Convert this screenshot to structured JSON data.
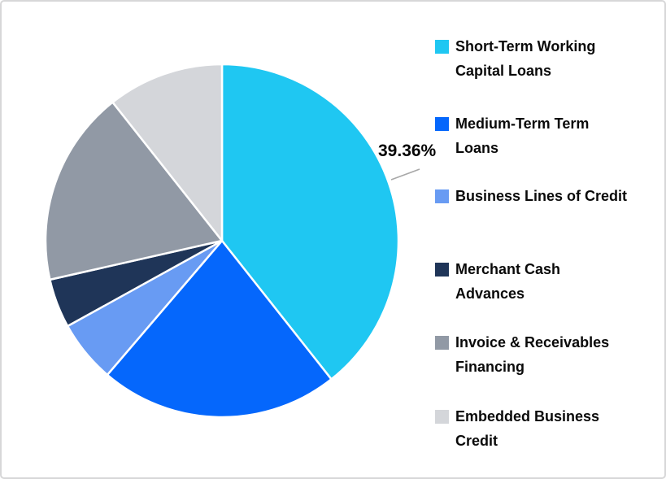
{
  "window": {
    "background": "#ffffff",
    "border_color": "#d7d7d8"
  },
  "chart_data": {
    "type": "pie",
    "title": "",
    "legend_position": "right",
    "start_angle_deg": 0,
    "direction": "clockwise",
    "slices": [
      {
        "label": "Short-Term Working Capital Loans",
        "value": 39.36,
        "color": "#1fc7f2"
      },
      {
        "label": "Medium-Term Term Loans",
        "value": 21.9,
        "color": "#0567fc"
      },
      {
        "label": "Business Lines of Credit",
        "value": 5.7,
        "color": "#689bf3"
      },
      {
        "label": "Merchant Cash Advances",
        "value": 4.5,
        "color": "#1f3558"
      },
      {
        "label": "Invoice & Receivables Financing",
        "value": 17.9,
        "color": "#9199a5"
      },
      {
        "label": "Embedded Business Credit",
        "value": 10.64,
        "color": "#d4d6da"
      }
    ],
    "data_label": {
      "text": "39.36%",
      "slice": "Short-Term Working Capital Loans"
    },
    "leader_line_color": "#a8a8a8",
    "slice_separator_color": "#ffffff"
  },
  "legend": {
    "items": [
      {
        "label": "Short-Term Working\nCapital Loans"
      },
      {
        "label": "Medium-Term Term\nLoans"
      },
      {
        "label": "Business Lines of Credit"
      },
      {
        "label": "Merchant Cash\nAdvances"
      },
      {
        "label": "Invoice & Receivables\nFinancing"
      },
      {
        "label": "Embedded Business\nCredit"
      }
    ]
  }
}
